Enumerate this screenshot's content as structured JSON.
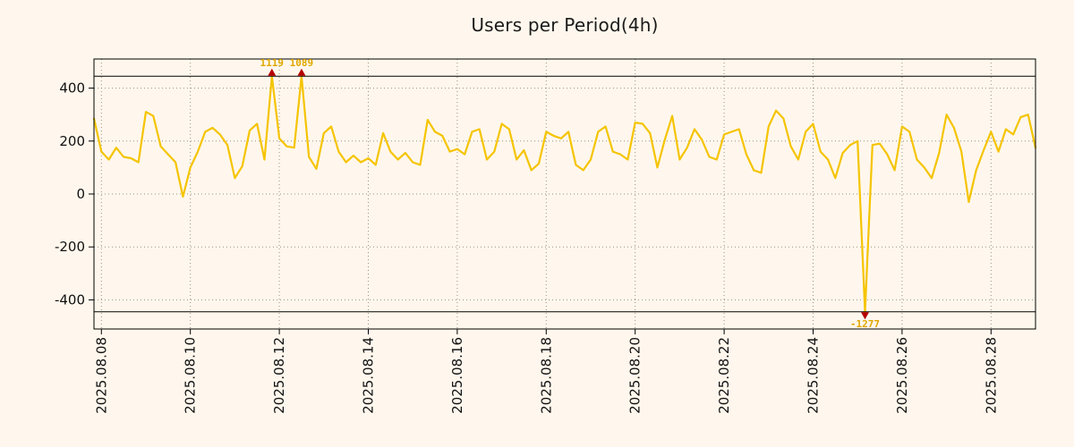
{
  "page": {
    "background": "#fff7ed"
  },
  "chart_data": {
    "type": "line",
    "title": "Users per Period(4h)",
    "xlabel": "",
    "ylabel": "",
    "ylim": [
      -510,
      510
    ],
    "clip_value": 445,
    "grid": true,
    "legend": false,
    "period_hours": 4,
    "y_ticks": [
      -400,
      -200,
      0,
      200,
      400
    ],
    "x_ticks": [
      {
        "index": 1,
        "label": "2025.08.08"
      },
      {
        "index": 13,
        "label": "2025.08.10"
      },
      {
        "index": 25,
        "label": "2025.08.12"
      },
      {
        "index": 37,
        "label": "2025.08.14"
      },
      {
        "index": 49,
        "label": "2025.08.16"
      },
      {
        "index": 61,
        "label": "2025.08.18"
      },
      {
        "index": 73,
        "label": "2025.08.20"
      },
      {
        "index": 85,
        "label": "2025.08.22"
      },
      {
        "index": 97,
        "label": "2025.08.24"
      },
      {
        "index": 109,
        "label": "2025.08.26"
      },
      {
        "index": 121,
        "label": "2025.08.28"
      }
    ],
    "series": [
      {
        "name": "users",
        "color": "#f5c400",
        "values": [
          285,
          160,
          130,
          175,
          140,
          135,
          120,
          310,
          295,
          180,
          150,
          120,
          -10,
          100,
          160,
          235,
          250,
          225,
          185,
          60,
          105,
          240,
          265,
          130,
          1119,
          210,
          180,
          175,
          1089,
          140,
          95,
          230,
          255,
          160,
          120,
          145,
          120,
          135,
          110,
          230,
          160,
          130,
          155,
          120,
          110,
          280,
          235,
          220,
          160,
          170,
          150,
          235,
          245,
          130,
          160,
          265,
          245,
          130,
          165,
          90,
          115,
          235,
          220,
          210,
          235,
          110,
          90,
          130,
          235,
          255,
          160,
          150,
          130,
          270,
          265,
          230,
          100,
          205,
          295,
          130,
          175,
          245,
          205,
          140,
          130,
          225,
          235,
          245,
          150,
          90,
          80,
          255,
          315,
          285,
          180,
          130,
          235,
          265,
          160,
          130,
          60,
          155,
          185,
          200,
          -1277,
          185,
          190,
          150,
          90,
          255,
          235,
          130,
          100,
          60,
          155,
          300,
          250,
          160,
          -30,
          90,
          165,
          235,
          160,
          245,
          225,
          290,
          300,
          175
        ]
      }
    ],
    "annotations": [
      {
        "label": "1119",
        "value": 1119,
        "index": 24,
        "marker": "up"
      },
      {
        "label": "1089",
        "value": 1089,
        "index": 28,
        "marker": "up"
      },
      {
        "label": "-1277",
        "value": -1277,
        "index": 104,
        "marker": "down"
      }
    ],
    "colors": {
      "background": "#fff7ed",
      "grid": "#9a8f80",
      "frame": "#000000",
      "clip_line": "#000000",
      "annotation_text": "#dfa800",
      "marker": "#b40000"
    }
  }
}
